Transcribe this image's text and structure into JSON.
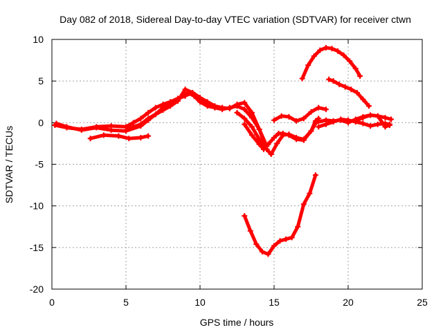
{
  "chart_data": {
    "type": "scatter",
    "title": "Day 082 of 2018, Sidereal Day-to-day VTEC variation (SDTVAR) for receiver ctwn",
    "xlabel": "GPS time / hours",
    "ylabel": "SDTVAR / TECUs",
    "xlim": [
      0,
      25
    ],
    "ylim": [
      -20,
      10
    ],
    "xticks": [
      0,
      5,
      10,
      15,
      20,
      25
    ],
    "yticks": [
      -20,
      -15,
      -10,
      -5,
      0,
      5,
      10
    ],
    "grid": true,
    "marker_color": "#ff0000",
    "series": [
      {
        "name": "track-1",
        "x": [
          0.2,
          1,
          2,
          3,
          4,
          5,
          5.5,
          6,
          6.5,
          7,
          7.5,
          8,
          8.5,
          9,
          9.2,
          9.6,
          10,
          10.5,
          11,
          11.5,
          12,
          12.5,
          13,
          13.5,
          14,
          14.5
        ],
        "y": [
          -0.3,
          -0.6,
          -0.8,
          -0.5,
          -0.4,
          -0.5,
          0,
          0.5,
          1.2,
          1.8,
          2.2,
          2.5,
          2.9,
          3.2,
          3.6,
          3.2,
          2.5,
          2.0,
          1.8,
          1.6,
          1.8,
          2,
          1.6,
          0.6,
          -0.8,
          -2.8
        ]
      },
      {
        "name": "track-2",
        "x": [
          0.3,
          1,
          2,
          3,
          4,
          5,
          6,
          6.5,
          7,
          7.5,
          8,
          8.5,
          9,
          9.5,
          10,
          10.5,
          11,
          11.5,
          12,
          12.5,
          13,
          13.5,
          14,
          14.5
        ],
        "y": [
          -0.1,
          -0.5,
          -0.9,
          -0.6,
          -0.9,
          -1.0,
          -0.4,
          0.3,
          1.0,
          1.8,
          2.4,
          2.8,
          3.3,
          3.5,
          3.0,
          2.5,
          2.0,
          1.8,
          1.7,
          2.2,
          2.4,
          1.2,
          -0.8,
          -3.2
        ]
      },
      {
        "name": "track-3",
        "x": [
          2.6,
          3.5,
          4.5,
          5.2,
          6,
          6.5
        ],
        "y": [
          -1.9,
          -1.5,
          -1.6,
          -1.9,
          -1.8,
          -1.6
        ]
      },
      {
        "name": "track-4",
        "x": [
          5,
          5.5,
          6,
          6.5,
          7,
          7.5,
          8,
          8.5,
          9,
          9.5,
          10,
          10.5,
          11
        ],
        "y": [
          -0.9,
          -0.5,
          -0.2,
          0.5,
          1.0,
          1.5,
          2.0,
          2.6,
          4.0,
          3.6,
          3.0,
          2.3,
          1.8
        ]
      },
      {
        "name": "track-5",
        "x": [
          12.5,
          13,
          13.5,
          14,
          14.5,
          14.8,
          15.2,
          15.6,
          16,
          16.5,
          17,
          17.5,
          18
        ],
        "y": [
          1.2,
          0.5,
          -0.5,
          -2,
          -3.2,
          -3.8,
          -2.5,
          -1.5,
          -1.4,
          -1.8,
          -2.0,
          -1.0,
          0.5
        ]
      },
      {
        "name": "track-6",
        "x": [
          13,
          13.5,
          14,
          14.3,
          14.6,
          15,
          15.3,
          15.6,
          16,
          16.5,
          17,
          17.5,
          17.8
        ],
        "y": [
          -0.2,
          -1.5,
          -2.6,
          -3.2,
          -2.6,
          -1.8,
          -1.3,
          -1.3,
          -1.5,
          -2.0,
          -2.1,
          -1.0,
          0.2
        ]
      },
      {
        "name": "track-7",
        "x": [
          15,
          15.5,
          16,
          16.5,
          17,
          17.5,
          18,
          18.5
        ],
        "y": [
          0.3,
          0.8,
          0.7,
          0.2,
          0.5,
          1.3,
          1.8,
          1.6
        ]
      },
      {
        "name": "track-8",
        "x": [
          17.8,
          18.5,
          19,
          19.5,
          20,
          20.5,
          21,
          21.5,
          22,
          22.5,
          22.9
        ],
        "y": [
          0.0,
          0.3,
          0.2,
          0.3,
          0.0,
          0.4,
          0.7,
          0.9,
          0.8,
          0.6,
          0.4
        ]
      },
      {
        "name": "track-9",
        "x": [
          18,
          18.5,
          19,
          19.5,
          20,
          20.5,
          21,
          21.5,
          22,
          22.5,
          22.8
        ],
        "y": [
          -0.5,
          -0.2,
          0.1,
          0.4,
          0.3,
          0.1,
          -0.1,
          -0.4,
          -0.2,
          -0.1,
          -0.2
        ]
      },
      {
        "name": "track-10",
        "x": [
          20.5,
          21,
          21.5,
          22,
          22.5,
          22.8
        ],
        "y": [
          0.2,
          0.6,
          0.9,
          0.8,
          -0.5,
          -0.3
        ]
      },
      {
        "name": "track-11",
        "x": [
          16.9,
          17.3,
          17.7,
          18.1,
          18.5,
          18.9,
          19.3,
          19.7,
          20.1,
          20.5,
          20.8
        ],
        "y": [
          5.3,
          6.9,
          8.0,
          8.7,
          9.0,
          8.9,
          8.6,
          8.1,
          7.4,
          6.5,
          5.6
        ]
      },
      {
        "name": "track-12",
        "x": [
          18.7,
          19,
          19.4,
          19.8,
          20.2,
          20.6,
          21,
          21.4
        ],
        "y": [
          5.2,
          5.0,
          4.6,
          4.3,
          4.0,
          3.6,
          2.8,
          2.0
        ]
      },
      {
        "name": "track-13",
        "x": [
          13,
          13.4,
          13.8,
          14.2,
          14.6,
          15,
          15.4,
          15.8,
          16.2,
          16.6,
          17,
          17.4,
          17.8
        ],
        "y": [
          -11.2,
          -13.0,
          -14.6,
          -15.5,
          -15.8,
          -14.8,
          -14.2,
          -14.0,
          -13.8,
          -12.5,
          -9.8,
          -8.5,
          -6.3
        ]
      }
    ]
  }
}
